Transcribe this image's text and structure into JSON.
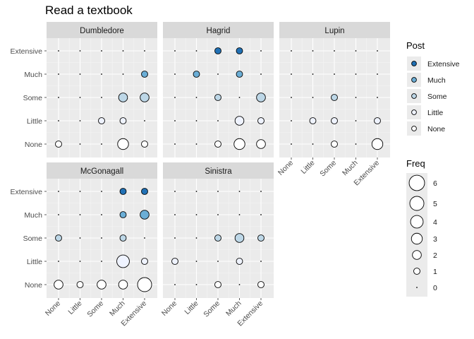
{
  "chart_data": {
    "type": "scatter",
    "title": "Read a textbook",
    "xlabel": "",
    "ylabel": "",
    "levels": [
      "None",
      "Little",
      "Some",
      "Much",
      "Extensive"
    ],
    "facets": [
      "Dumbledore",
      "Hagrid",
      "Lupin",
      "McGonagall",
      "Sinistra"
    ],
    "fill_legend": {
      "title": "Post",
      "entries": [
        "Extensive",
        "Much",
        "Some",
        "Little",
        "None"
      ],
      "colors": {
        "None": "#ffffff",
        "Little": "#eff3ff",
        "Some": "#bdd7e7",
        "Much": "#6baed6",
        "Extensive": "#2171b5"
      }
    },
    "size_legend": {
      "title": "Freq",
      "values": [
        6,
        5,
        4,
        3,
        2,
        1,
        0
      ]
    },
    "panel_background": "#ebebeb",
    "strip_background": "#d9d9d9",
    "grid": true,
    "legend_position": "right",
    "note": "",
    "data": {
      "Dumbledore": [
        [
          "None",
          "None",
          1
        ],
        [
          "Much",
          "None",
          3
        ],
        [
          "Extensive",
          "None",
          1
        ],
        [
          "Some",
          "Little",
          1
        ],
        [
          "Much",
          "Little",
          1
        ],
        [
          "Much",
          "Some",
          2
        ],
        [
          "Extensive",
          "Some",
          2
        ],
        [
          "Extensive",
          "Much",
          1
        ]
      ],
      "Hagrid": [
        [
          "Some",
          "None",
          1
        ],
        [
          "Much",
          "None",
          3
        ],
        [
          "Extensive",
          "None",
          2
        ],
        [
          "Much",
          "Little",
          2
        ],
        [
          "Extensive",
          "Little",
          1
        ],
        [
          "Some",
          "Some",
          1
        ],
        [
          "Extensive",
          "Some",
          2
        ],
        [
          "Little",
          "Much",
          1
        ],
        [
          "Much",
          "Much",
          1
        ],
        [
          "Some",
          "Extensive",
          1
        ],
        [
          "Much",
          "Extensive",
          1
        ]
      ],
      "Lupin": [
        [
          "Some",
          "None",
          1
        ],
        [
          "Extensive",
          "None",
          3
        ],
        [
          "Little",
          "Little",
          1
        ],
        [
          "Some",
          "Little",
          1
        ],
        [
          "Extensive",
          "Little",
          1
        ],
        [
          "Some",
          "Some",
          1
        ]
      ],
      "McGonagall": [
        [
          "None",
          "None",
          2
        ],
        [
          "Little",
          "None",
          1
        ],
        [
          "Some",
          "None",
          2
        ],
        [
          "Much",
          "None",
          2
        ],
        [
          "Extensive",
          "None",
          5
        ],
        [
          "Much",
          "Little",
          4
        ],
        [
          "Extensive",
          "Little",
          1
        ],
        [
          "None",
          "Some",
          1
        ],
        [
          "Much",
          "Some",
          1
        ],
        [
          "Much",
          "Much",
          1
        ],
        [
          "Extensive",
          "Much",
          2
        ],
        [
          "Much",
          "Extensive",
          1
        ],
        [
          "Extensive",
          "Extensive",
          1
        ]
      ],
      "Sinistra": [
        [
          "Some",
          "None",
          1
        ],
        [
          "Extensive",
          "None",
          1
        ],
        [
          "None",
          "Little",
          1
        ],
        [
          "Much",
          "Little",
          1
        ],
        [
          "Some",
          "Some",
          1
        ],
        [
          "Much",
          "Some",
          2
        ],
        [
          "Extensive",
          "Some",
          1
        ]
      ]
    }
  }
}
